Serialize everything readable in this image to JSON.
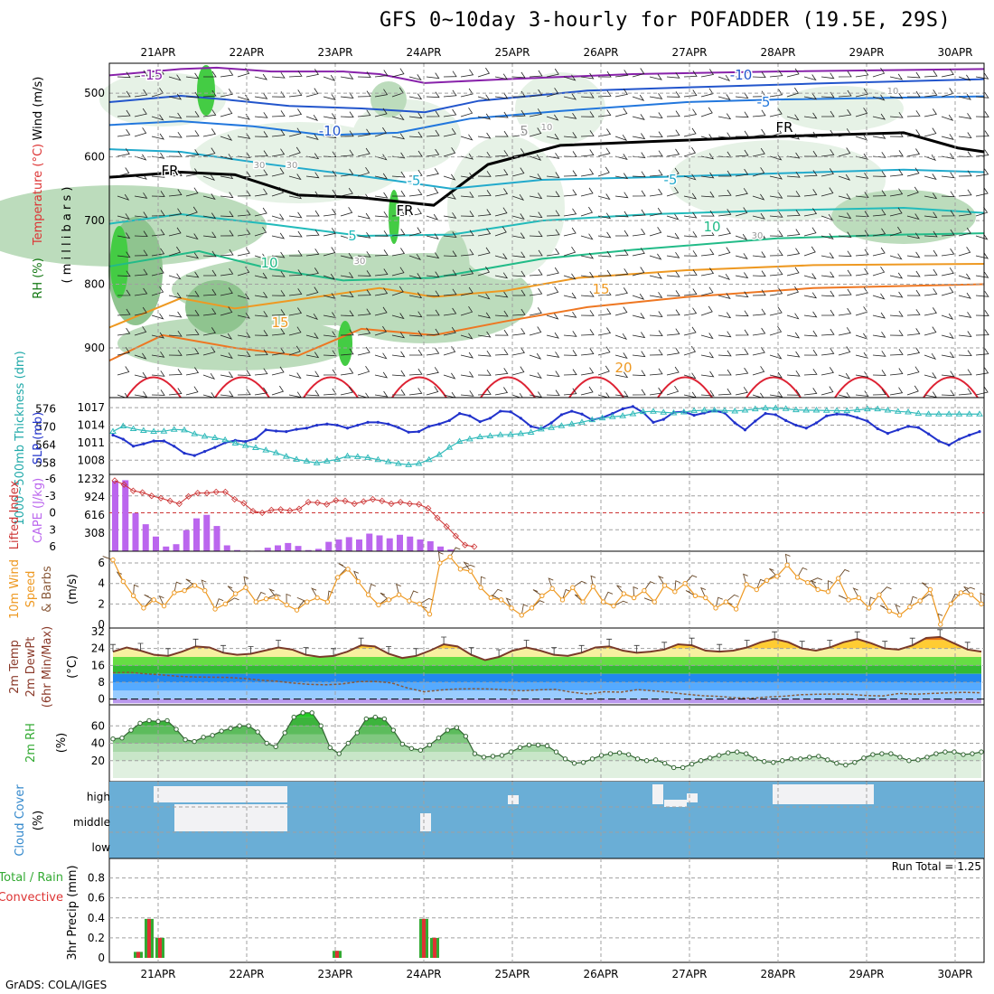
{
  "title": "GFS 0~10day 3-hourly for POFADDER (19.5E, 29S)",
  "credit": "GrADS: COLA/IGES",
  "colors": {
    "grid": "#a0a0a0",
    "rh_light": "#e6f2e6",
    "rh_mid": "#bcdcbc",
    "rh_dark": "#8fc48f",
    "rh_max": "#44cc44",
    "slp": "#2233cc",
    "thickness": "#33bbbb",
    "lifted": "#cc3333",
    "cape": "#bb66ee",
    "wind10": "#ee9922",
    "temp_line": "#7a3a2a",
    "dewpt": "#999999",
    "rh2m": "#33aa33",
    "cloud": "#6aaed6",
    "cloud_clear": "#f2f2f4",
    "precip_total": "#33aa33",
    "precip_conv": "#dd3333"
  },
  "date_labels": [
    "21APR",
    "22APR",
    "23APR",
    "24APR",
    "25APR",
    "26APR",
    "27APR",
    "28APR",
    "29APR",
    "30APR"
  ],
  "panels": {
    "upper": {
      "ylabel_prefix": "RH (%)",
      "ylabel_temp": "Temperature (°C)",
      "ylabel_wind": "Wind (m/s)",
      "ylabel_units": "( m i l l i b a r s )",
      "ticks": [
        "500",
        "600",
        "700",
        "800",
        "900"
      ],
      "contour_labels": [
        "-15",
        "-10",
        "-10",
        "-5",
        "-5",
        "FR",
        "FR",
        "FR",
        "-5",
        "5",
        "5",
        "10",
        "10",
        "15",
        "15",
        "20",
        "30",
        "30",
        "30",
        "30",
        "10",
        "10"
      ]
    },
    "slp": {
      "label_thk": "1000~500mb Thickness (dm)",
      "label_slp": "SLP (mb)",
      "left_ticks": [
        "576",
        "570",
        "564",
        "558"
      ],
      "right_ticks": [
        "1017",
        "1014",
        "1011",
        "1008"
      ]
    },
    "cape": {
      "label_li": "Lifted Index",
      "label_cape": "CAPE (J/kg)",
      "left_ticks": [
        "-6",
        "-3",
        "0",
        "3",
        "6"
      ],
      "right_ticks": [
        "1232",
        "924",
        "616",
        "308"
      ]
    },
    "wind": {
      "label_a": "10m Wind",
      "label_b": "Speed",
      "label_c": "& Barbs",
      "label_units": "(m/s)",
      "ticks": [
        "6",
        "4",
        "2",
        "0"
      ]
    },
    "temp": {
      "label_a": "2m Temp",
      "label_b": "2m DewPt",
      "label_c": "(6hr Min/Max)",
      "label_units": "(°C)",
      "ticks": [
        "32",
        "24",
        "16",
        "8",
        "0"
      ]
    },
    "rh": {
      "label_a": "2m RH",
      "label_units": "(%)",
      "ticks": [
        "60",
        "40",
        "20"
      ]
    },
    "cloud": {
      "label_a": "Cloud Cover",
      "label_units": "(%)",
      "levels": [
        "high",
        "middle",
        "low"
      ]
    },
    "precip": {
      "label_a": "Total / Rain",
      "label_b": "Convective",
      "label_units": "3hr Precip (mm)",
      "ticks": [
        "0.8",
        "0.6",
        "0.4",
        "0.2",
        "0"
      ],
      "run_total": "Run Total = 1.25"
    }
  },
  "chart_data": [
    {
      "type": "line",
      "title": "SLP / 1000~500mb Thickness",
      "series": [
        {
          "name": "SLP (mb)",
          "values": [
            1012.3,
            1011.6,
            1010.4,
            1010.8,
            1011.3,
            1011.3,
            1010.4,
            1009.2,
            1008.8,
            1009.5,
            1010.2,
            1011.0,
            1011.4,
            1011.2,
            1011.7,
            1013.2,
            1013.0,
            1012.9,
            1013.3,
            1013.5,
            1014.0,
            1014.2,
            1014.0,
            1013.5,
            1014.0,
            1014.5,
            1014.5,
            1014.2,
            1013.6,
            1012.8,
            1012.9,
            1013.8,
            1014.2,
            1014.8,
            1016.0,
            1015.6,
            1014.6,
            1015.2,
            1016.4,
            1016.3,
            1015.2,
            1013.8,
            1013.4,
            1014.4,
            1015.8,
            1016.4,
            1015.9,
            1014.9,
            1015.3,
            1016.0,
            1016.8,
            1017.2,
            1016.2,
            1014.5,
            1015.0,
            1016.2,
            1016.3,
            1015.7,
            1016.1,
            1016.5,
            1016.1,
            1014.4,
            1013.2,
            1014.7,
            1016.0,
            1015.8,
            1014.8,
            1014.0,
            1013.5,
            1014.4,
            1015.6,
            1015.9,
            1015.8,
            1015.3,
            1014.7,
            1013.4,
            1012.6,
            1013.2,
            1013.8,
            1013.6,
            1012.5,
            1011.3,
            1010.6,
            1011.6,
            1012.3,
            1012.9
          ]
        },
        {
          "name": "1000~500mb Thickness (dm)",
          "values": [
            568.5,
            570.3,
            569.4,
            568.8,
            568.5,
            568.6,
            569.2,
            569.0,
            567.7,
            566.9,
            566.4,
            565.7,
            564.6,
            563.8,
            563.1,
            562.3,
            561.4,
            560.2,
            559.2,
            558.6,
            558.0,
            558.6,
            559.2,
            560.3,
            560.1,
            559.8,
            559.1,
            558.4,
            557.8,
            557.4,
            557.8,
            559.1,
            560.8,
            563.2,
            565.2,
            566.0,
            566.7,
            567.0,
            567.4,
            567.5,
            567.8,
            568.2,
            569.3,
            569.8,
            570.4,
            571.0,
            571.6,
            572.4,
            573.0,
            573.4,
            573.7,
            574.4,
            575.1,
            575.2,
            574.9,
            574.7,
            575.0,
            575.4,
            575.6,
            575.6,
            575.5,
            575.3,
            575.6,
            576.0,
            576.3,
            576.3,
            576.1,
            575.7,
            575.6,
            575.6,
            575.5,
            575.5,
            575.4,
            575.7,
            576.0,
            576.0,
            575.6,
            575.2,
            575.0,
            574.5,
            574.3,
            574.3,
            574.3,
            574.3,
            574.3,
            574.3
          ]
        }
      ]
    },
    {
      "type": "bar",
      "title": "Lifted Index / CAPE",
      "series": [
        {
          "name": "CAPE (J/kg)",
          "values": [
            1200,
            1210,
            650,
            460,
            250,
            80,
            120,
            360,
            560,
            620,
            430,
            100,
            20,
            10,
            10,
            60,
            100,
            140,
            90,
            20,
            40,
            160,
            200,
            240,
            200,
            300,
            270,
            220,
            280,
            250,
            200,
            170,
            80,
            30,
            0,
            0,
            0,
            0,
            0,
            0
          ]
        },
        {
          "name": "Lifted Index",
          "values": [
            -5.7,
            -5.0,
            -3.9,
            -3.6,
            -3.0,
            -2.6,
            -2.1,
            -1.6,
            -2.9,
            -3.5,
            -3.5,
            -3.7,
            -3.7,
            -2.4,
            -1.7,
            -0.3,
            0.0,
            -0.5,
            -0.6,
            -0.4,
            -0.7,
            -1.9,
            -1.8,
            -1.5,
            -2.2,
            -2.1,
            -1.6,
            -2.0,
            -2.4,
            -2.1,
            -1.6,
            -1.9,
            -1.6,
            -1.5,
            -0.8,
            0.9,
            2.4,
            4.1,
            5.7,
            6.0
          ]
        }
      ]
    },
    {
      "type": "line",
      "title": "10m Wind Speed",
      "series": [
        {
          "name": "10m Wind Speed (m/s)",
          "values": [
            6.3,
            4.2,
            2.8,
            1.6,
            2.4,
            1.8,
            3.1,
            3.3,
            3.8,
            3.3,
            1.5,
            2.0,
            3.0,
            3.6,
            2.2,
            2.5,
            2.6,
            1.9,
            1.4,
            2.2,
            2.6,
            2.2,
            4.6,
            5.4,
            4.2,
            2.9,
            1.9,
            2.4,
            2.9,
            2.3,
            2.0,
            1.0,
            6.0,
            6.6,
            5.4,
            5.2,
            3.6,
            2.6,
            2.4,
            1.6,
            0.9,
            1.6,
            2.8,
            3.5,
            2.4,
            3.6,
            2.2,
            3.7,
            2.2,
            1.8,
            3.0,
            2.6,
            3.3,
            2.2,
            3.8,
            3.2,
            4.0,
            2.8,
            2.6,
            1.6,
            2.2,
            1.5,
            3.9,
            3.4,
            4.3,
            4.7,
            5.8,
            4.6,
            4.1,
            3.4,
            3.2,
            4.5,
            2.4,
            2.6,
            1.6,
            2.9,
            1.3,
            0.9,
            1.7,
            2.3,
            3.4,
            0.0,
            2.0,
            3.1,
            2.9,
            2.0
          ]
        }
      ]
    },
    {
      "type": "area",
      "title": "2m Temp / DewPt",
      "series": [
        {
          "name": "2m Temp (°C)",
          "values": [
            22.5,
            24.5,
            23,
            21,
            20.5,
            22.5,
            25,
            24.5,
            22,
            21,
            21.5,
            23,
            24.5,
            23.5,
            21,
            20,
            20.5,
            22.5,
            25.5,
            25,
            21.5,
            19.5,
            20.5,
            23,
            26,
            25,
            21,
            18.5,
            20,
            23,
            24.5,
            23,
            21,
            20.5,
            22,
            24.5,
            25,
            23,
            22,
            22.5,
            23.5,
            26,
            25.5,
            23,
            22.5,
            23,
            24.5,
            27,
            28.5,
            27,
            24,
            23,
            24.5,
            27,
            28.5,
            26.5,
            24,
            23.5,
            25.5,
            29,
            29.5,
            26.5,
            23.5,
            22.5
          ]
        },
        {
          "name": "2m DewPt (°C)",
          "values": [
            12.5,
            12.7,
            12,
            11.5,
            10.8,
            10.5,
            10.4,
            10.3,
            9.8,
            9,
            8.5,
            7.6,
            7,
            6.8,
            7.2,
            8.3,
            8.4,
            7.7,
            5.2,
            3.5,
            4.3,
            4.8,
            4.9,
            4.8,
            4.4,
            4,
            4.4,
            4.6,
            3.3,
            2.4,
            3.5,
            3.3,
            4.5,
            3.9,
            3.2,
            2.3,
            1.6,
            1.3,
            0.6,
            0.4,
            1,
            1.4,
            2.1,
            2.3,
            2.4,
            2.3,
            1.7,
            1.5,
            2.7,
            2.3,
            2.7,
            3,
            3.2,
            3
          ]
        }
      ]
    },
    {
      "type": "area",
      "title": "2m RH",
      "series": [
        {
          "name": "2m RH (%)",
          "values": [
            45,
            46,
            55,
            63,
            66,
            65,
            66,
            56,
            44,
            42,
            47,
            49,
            54,
            57,
            60,
            60,
            53,
            40,
            36,
            52,
            70,
            75,
            75,
            60,
            35,
            28,
            40,
            52,
            68,
            70,
            68,
            55,
            39,
            34,
            32,
            38,
            46,
            55,
            58,
            48,
            28,
            24,
            25,
            26,
            30,
            35,
            38,
            38,
            37,
            30,
            22,
            17,
            18,
            22,
            26,
            28,
            29,
            27,
            22,
            20,
            21,
            17,
            12,
            12,
            16,
            20,
            23,
            26,
            29,
            30,
            28,
            22,
            19,
            18,
            20,
            22,
            22,
            24,
            25,
            21,
            17,
            15,
            18,
            23,
            27,
            28,
            28,
            24,
            20,
            21,
            24,
            28,
            30,
            30,
            27,
            28,
            30
          ]
        }
      ]
    },
    {
      "type": "bar",
      "title": "3hr Precip",
      "series": [
        {
          "name": "Total / Rain (mm)",
          "values": [
            0.06,
            0.39,
            0.2,
            0.07,
            0.39,
            0.2
          ]
        },
        {
          "name": "Convective (mm)",
          "values": [
            0.06,
            0.39,
            0.2,
            0.07,
            0.39,
            0.2
          ]
        }
      ]
    }
  ]
}
